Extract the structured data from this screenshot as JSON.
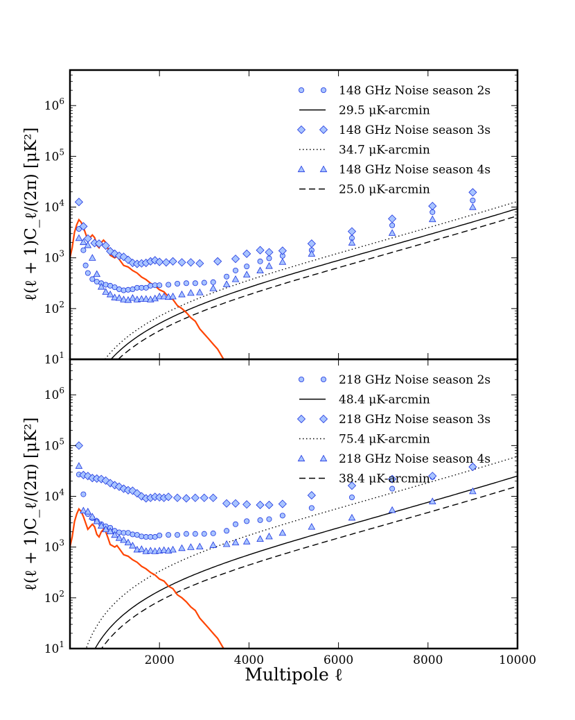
{
  "chart_data": [
    {
      "type": "line",
      "panel": "top",
      "ylabel": "ℓ(ℓ + 1)C_ℓ/(2π) [μK²]",
      "xlim": [
        0,
        10000
      ],
      "ylim_log10": [
        1,
        6.7
      ],
      "yscale": "log",
      "ytick_labels": [
        {
          "base": "10",
          "exp": "1",
          "log": 1
        },
        {
          "base": "10",
          "exp": "2",
          "log": 2
        },
        {
          "base": "10",
          "exp": "3",
          "log": 3
        },
        {
          "base": "10",
          "exp": "4",
          "log": 4
        },
        {
          "base": "10",
          "exp": "5",
          "log": 5
        },
        {
          "base": "10",
          "exp": "6",
          "log": 6
        }
      ],
      "signal_color": "#ff4400",
      "marker_color": "#a8c4ff",
      "marker_edge": "#1a33e0",
      "noise_levels": [
        29.5,
        34.7,
        25.0
      ],
      "legend": [
        {
          "kind": "circle",
          "label": "148 GHz Noise season 2s"
        },
        {
          "kind": "solid",
          "label": "29.5 μK-arcmin"
        },
        {
          "kind": "diamond",
          "label": "148 GHz Noise season 3s"
        },
        {
          "kind": "dotted",
          "label": "34.7 μK-arcmin"
        },
        {
          "kind": "triangle",
          "label": "148 GHz Noise season 4s"
        },
        {
          "kind": "dashed",
          "label": "25.0 μK-arcmin"
        }
      ],
      "series": [
        {
          "name": "148 GHz Noise season 2s",
          "marker": "circle",
          "x": [
            200,
            300,
            350,
            400,
            500,
            600,
            700,
            800,
            900,
            1000,
            1100,
            1200,
            1300,
            1400,
            1500,
            1600,
            1700,
            1800,
            1900,
            2000,
            2200,
            2400,
            2600,
            2800,
            3000,
            3200,
            3500,
            3700,
            3950,
            4250,
            4450,
            4750,
            5400,
            6300,
            7200,
            8100,
            9000
          ],
          "y": [
            3.57,
            3.15,
            2.85,
            2.7,
            2.58,
            2.53,
            2.5,
            2.47,
            2.45,
            2.42,
            2.38,
            2.36,
            2.37,
            2.38,
            2.41,
            2.41,
            2.41,
            2.45,
            2.46,
            2.46,
            2.47,
            2.49,
            2.5,
            2.5,
            2.51,
            2.52,
            2.63,
            2.75,
            2.83,
            2.93,
            2.99,
            3.04,
            3.15,
            3.39,
            3.64,
            3.9,
            4.13
          ]
        },
        {
          "name": "148 GHz Noise season 3s",
          "marker": "diamond",
          "x": [
            200,
            300,
            400,
            550,
            650,
            800,
            900,
            1000,
            1100,
            1200,
            1300,
            1400,
            1500,
            1600,
            1700,
            1800,
            1900,
            2000,
            2150,
            2300,
            2500,
            2700,
            2900,
            3300,
            3700,
            3950,
            4250,
            4450,
            4750,
            5400,
            6300,
            7200,
            8100,
            9000
          ],
          "y": [
            4.1,
            3.62,
            3.38,
            3.29,
            3.28,
            3.24,
            3.13,
            3.08,
            3.04,
            3.02,
            2.96,
            2.9,
            2.88,
            2.89,
            2.9,
            2.93,
            2.95,
            2.92,
            2.91,
            2.93,
            2.91,
            2.91,
            2.89,
            2.93,
            2.98,
            3.08,
            3.15,
            3.11,
            3.14,
            3.28,
            3.52,
            3.77,
            4.02,
            4.29
          ]
        },
        {
          "name": "148 GHz Noise season 4s",
          "marker": "triangle",
          "x": [
            200,
            300,
            400,
            500,
            600,
            700,
            800,
            900,
            1000,
            1100,
            1200,
            1300,
            1400,
            1500,
            1600,
            1700,
            1800,
            1900,
            2000,
            2100,
            2200,
            2300,
            2500,
            2700,
            2900,
            3200,
            3500,
            3700,
            3950,
            4250,
            4450,
            4750,
            5400,
            6300,
            7200,
            8100,
            9000
          ],
          "y": [
            3.39,
            3.31,
            3.25,
            3.0,
            2.68,
            2.43,
            2.33,
            2.28,
            2.22,
            2.21,
            2.18,
            2.17,
            2.21,
            2.18,
            2.19,
            2.19,
            2.18,
            2.2,
            2.24,
            2.24,
            2.23,
            2.24,
            2.28,
            2.31,
            2.32,
            2.4,
            2.48,
            2.58,
            2.67,
            2.75,
            2.84,
            2.92,
            3.08,
            3.3,
            3.49,
            3.76,
            4.0
          ]
        }
      ]
    },
    {
      "type": "line",
      "panel": "bottom",
      "ylabel": "ℓ(ℓ + 1)C_ℓ/(2π) [μK²]",
      "xlabel": "Multipole ℓ",
      "xlim": [
        0,
        10000
      ],
      "xtick_labels": [
        {
          "label": "2000",
          "value": 2000
        },
        {
          "label": "4000",
          "value": 4000
        },
        {
          "label": "6000",
          "value": 6000
        },
        {
          "label": "8000",
          "value": 8000
        },
        {
          "label": "10000",
          "value": 10000
        }
      ],
      "ylim_log10": [
        1,
        6.7
      ],
      "yscale": "log",
      "ytick_labels": [
        {
          "base": "10",
          "exp": "1",
          "log": 1
        },
        {
          "base": "10",
          "exp": "2",
          "log": 2
        },
        {
          "base": "10",
          "exp": "3",
          "log": 3
        },
        {
          "base": "10",
          "exp": "4",
          "log": 4
        },
        {
          "base": "10",
          "exp": "5",
          "log": 5
        },
        {
          "base": "10",
          "exp": "6",
          "log": 6
        }
      ],
      "noise_levels": [
        48.4,
        75.4,
        38.4
      ],
      "legend": [
        {
          "kind": "circle",
          "label": "218 GHz Noise season 2s"
        },
        {
          "kind": "solid",
          "label": "48.4 μK-arcmin"
        },
        {
          "kind": "diamond",
          "label": "218 GHz Noise season 3s"
        },
        {
          "kind": "dotted",
          "label": "75.4 μK-arcmin"
        },
        {
          "kind": "triangle",
          "label": "218 GHz Noise season 4s"
        },
        {
          "kind": "dashed",
          "label": "38.4 μK-arcmin"
        }
      ],
      "series": [
        {
          "name": "218 GHz Noise season 2s",
          "marker": "circle",
          "x": [
            200,
            300,
            400,
            500,
            600,
            700,
            800,
            900,
            1000,
            1100,
            1200,
            1300,
            1400,
            1500,
            1600,
            1700,
            1800,
            1900,
            2000,
            2200,
            2400,
            2600,
            2800,
            3000,
            3200,
            3500,
            3700,
            3950,
            4250,
            4450,
            4750,
            5400,
            6300,
            7200,
            8100,
            9000
          ],
          "y": [
            4.43,
            4.04,
            3.65,
            3.57,
            3.51,
            3.45,
            3.41,
            3.38,
            3.32,
            3.29,
            3.28,
            3.28,
            3.25,
            3.24,
            3.21,
            3.2,
            3.2,
            3.2,
            3.23,
            3.24,
            3.24,
            3.26,
            3.26,
            3.26,
            3.27,
            3.32,
            3.45,
            3.51,
            3.53,
            3.55,
            3.62,
            3.77,
            3.98,
            4.15,
            4.38,
            4.59
          ]
        },
        {
          "name": "218 GHz Noise season 3s",
          "marker": "diamond",
          "x": [
            200,
            300,
            400,
            500,
            600,
            700,
            800,
            900,
            1000,
            1100,
            1200,
            1300,
            1400,
            1500,
            1600,
            1700,
            1800,
            1900,
            2000,
            2100,
            2200,
            2400,
            2600,
            2800,
            3000,
            3200,
            3500,
            3700,
            3950,
            4250,
            4450,
            4750,
            5400,
            6300,
            7200,
            8100,
            9000
          ],
          "y": [
            5.0,
            4.42,
            4.4,
            4.36,
            4.35,
            4.34,
            4.31,
            4.26,
            4.22,
            4.19,
            4.15,
            4.12,
            4.11,
            4.06,
            4.0,
            3.96,
            3.97,
            3.99,
            3.98,
            3.97,
            3.99,
            3.97,
            3.96,
            3.97,
            3.97,
            3.97,
            3.86,
            3.86,
            3.84,
            3.83,
            3.83,
            3.85,
            4.02,
            4.21,
            4.34,
            4.4,
            4.58
          ]
        },
        {
          "name": "218 GHz Noise season 4s",
          "marker": "triangle",
          "x": [
            200,
            300,
            400,
            500,
            600,
            700,
            800,
            900,
            1000,
            1100,
            1200,
            1300,
            1400,
            1500,
            1600,
            1700,
            1800,
            1900,
            2000,
            2100,
            2200,
            2300,
            2500,
            2700,
            2900,
            3200,
            3500,
            3700,
            3950,
            4250,
            4450,
            4750,
            5400,
            6300,
            7200,
            8100,
            9000
          ],
          "y": [
            4.6,
            3.72,
            3.7,
            3.6,
            3.51,
            3.42,
            3.35,
            3.31,
            3.24,
            3.18,
            3.14,
            3.09,
            3.03,
            2.95,
            2.96,
            2.92,
            2.93,
            2.92,
            2.93,
            2.94,
            2.93,
            2.95,
            2.98,
            3.0,
            3.01,
            3.04,
            3.06,
            3.09,
            3.11,
            3.16,
            3.21,
            3.28,
            3.4,
            3.58,
            3.73,
            3.9,
            4.1
          ]
        }
      ]
    }
  ]
}
